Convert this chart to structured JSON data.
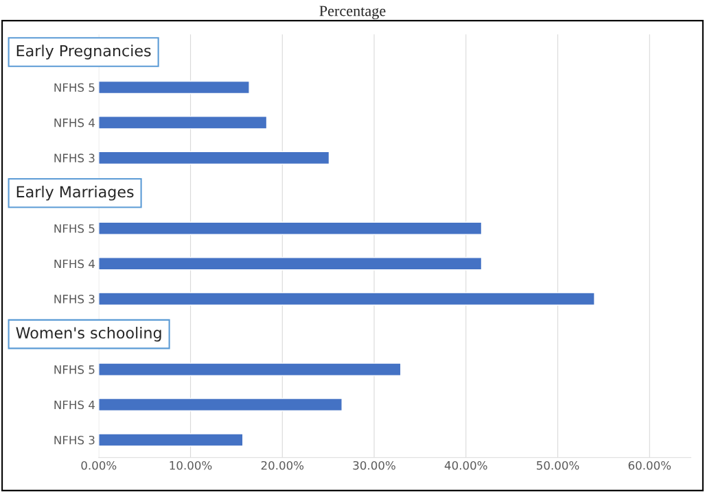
{
  "chart_data": {
    "type": "bar",
    "orientation": "horizontal",
    "title": "Percentage",
    "categories": [
      null,
      "NFHS 5",
      "NFHS 4",
      "NFHS 3",
      null,
      "NFHS 5",
      "NFHS 4",
      "NFHS 3",
      null,
      "NFHS 5",
      "NFHS 4",
      "NFHS 3"
    ],
    "values": [
      null,
      16.4,
      18.3,
      25.1,
      null,
      41.7,
      41.7,
      54.0,
      null,
      32.9,
      26.5,
      15.7
    ],
    "color": "#4472c4",
    "annotations": [
      "Early Pregnancies",
      "Early Marriages",
      "Women's schooling"
    ],
    "xlim": [
      0,
      64.5
    ],
    "xticks": [
      {
        "value": 0,
        "label": "0.00%"
      },
      {
        "value": 10,
        "label": "10.00%"
      },
      {
        "value": 20,
        "label": "20.00%"
      },
      {
        "value": 30,
        "label": "30.00%"
      },
      {
        "value": 40,
        "label": "40.00%"
      },
      {
        "value": 50,
        "label": "50.00%"
      },
      {
        "value": 60,
        "label": "60.00%"
      }
    ],
    "grid": "x"
  }
}
